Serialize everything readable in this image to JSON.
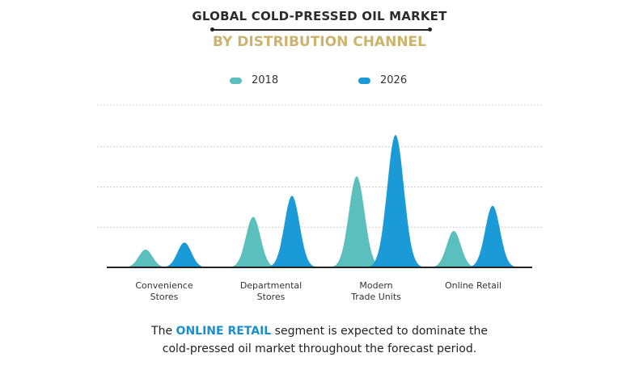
{
  "title": "GLOBAL COLD-PRESSED OIL MARKET",
  "subtitle": "BY DISTRIBUTION CHANNEL",
  "note": {
    "pre": "The ",
    "highlight": "ONLINE RETAIL",
    "post": " segment is expected to dominate the",
    "line2": "cold-pressed oil market throughout the forecast period."
  },
  "chart_data": {
    "type": "area",
    "title": "GLOBAL COLD-PRESSED OIL MARKET BY DISTRIBUTION CHANNEL",
    "categories": [
      "Convenience Stores",
      "Departmental Stores",
      "Modern Trade Units",
      "Online Retail"
    ],
    "category_lines": [
      [
        "Convenience",
        "Stores"
      ],
      [
        "Departmental",
        "Stores"
      ],
      [
        "Modern",
        "Trade Units"
      ],
      [
        "Online Retail",
        ""
      ]
    ],
    "series": [
      {
        "name": "2018",
        "color": "#5bbfbd",
        "values": [
          0.43,
          1.22,
          2.2,
          0.88
        ]
      },
      {
        "name": "2026",
        "color": "#1a9ad6",
        "values": [
          0.6,
          1.73,
          3.2,
          1.49
        ]
      }
    ],
    "units": "relative (gridline units), no axis labels shown",
    "ylim": [
      0,
      3.6
    ],
    "grid": true,
    "legend": "top-center"
  }
}
